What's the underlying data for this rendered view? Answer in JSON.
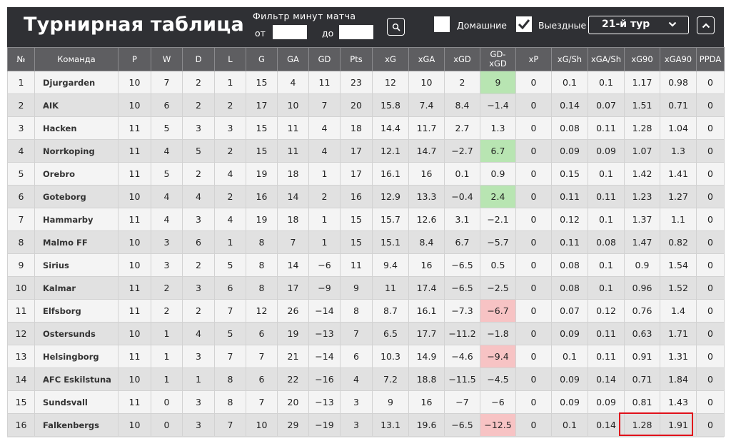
{
  "header": {
    "title": "Турнирная таблица",
    "filter_label": "Фильтр минут матча",
    "from_label": "от",
    "to_label": "до",
    "from_value": "",
    "to_value": "",
    "home_label": "Домашние",
    "home_checked": false,
    "away_label": "Выездные",
    "away_checked": true,
    "tour_selected": "21-й тур"
  },
  "columns": [
    "№",
    "Команда",
    "P",
    "W",
    "D",
    "L",
    "G",
    "GA",
    "GD",
    "Pts",
    "xG",
    "xGA",
    "xGD",
    "GD-\nxGD",
    "xP",
    "xG/Sh",
    "xGA/Sh",
    "xG90",
    "xGA90",
    "PPDA"
  ],
  "rows": [
    [
      "1",
      "Djurgarden",
      "10",
      "7",
      "2",
      "1",
      "15",
      "4",
      "11",
      "23",
      "12",
      "10",
      "2",
      "9",
      "0",
      "0.1",
      "0.1",
      "1.17",
      "0.98",
      "0"
    ],
    [
      "2",
      "AIK",
      "10",
      "6",
      "2",
      "2",
      "17",
      "10",
      "7",
      "20",
      "15.8",
      "7.4",
      "8.4",
      "-1.4",
      "0",
      "0.14",
      "0.07",
      "1.51",
      "0.71",
      "0"
    ],
    [
      "3",
      "Hacken",
      "11",
      "5",
      "3",
      "3",
      "15",
      "11",
      "4",
      "18",
      "14.4",
      "11.7",
      "2.7",
      "1.3",
      "0",
      "0.08",
      "0.11",
      "1.28",
      "1.04",
      "0"
    ],
    [
      "4",
      "Norrkoping",
      "11",
      "4",
      "5",
      "2",
      "15",
      "11",
      "4",
      "17",
      "12.1",
      "14.7",
      "-2.7",
      "6.7",
      "0",
      "0.09",
      "0.09",
      "1.07",
      "1.3",
      "0"
    ],
    [
      "5",
      "Orebro",
      "11",
      "5",
      "2",
      "4",
      "19",
      "18",
      "1",
      "17",
      "16.1",
      "16",
      "0.1",
      "0.9",
      "0",
      "0.15",
      "0.1",
      "1.42",
      "1.41",
      "0"
    ],
    [
      "6",
      "Goteborg",
      "10",
      "4",
      "4",
      "2",
      "16",
      "14",
      "2",
      "16",
      "12.9",
      "13.3",
      "-0.4",
      "2.4",
      "0",
      "0.11",
      "0.11",
      "1.23",
      "1.27",
      "0"
    ],
    [
      "7",
      "Hammarby",
      "11",
      "4",
      "3",
      "4",
      "19",
      "18",
      "1",
      "15",
      "15.7",
      "12.6",
      "3.1",
      "-2.1",
      "0",
      "0.12",
      "0.1",
      "1.37",
      "1.1",
      "0"
    ],
    [
      "8",
      "Malmo FF",
      "10",
      "3",
      "6",
      "1",
      "8",
      "7",
      "1",
      "15",
      "15.1",
      "8.4",
      "6.7",
      "-5.7",
      "0",
      "0.11",
      "0.08",
      "1.47",
      "0.82",
      "0"
    ],
    [
      "9",
      "Sirius",
      "10",
      "3",
      "2",
      "5",
      "8",
      "14",
      "-6",
      "11",
      "9.4",
      "16",
      "-6.5",
      "0.5",
      "0",
      "0.08",
      "0.1",
      "0.9",
      "1.54",
      "0"
    ],
    [
      "10",
      "Kalmar",
      "11",
      "2",
      "3",
      "6",
      "8",
      "17",
      "-9",
      "9",
      "11",
      "17.4",
      "-6.5",
      "-2.5",
      "0",
      "0.08",
      "0.1",
      "0.96",
      "1.52",
      "0"
    ],
    [
      "11",
      "Elfsborg",
      "11",
      "2",
      "2",
      "7",
      "12",
      "26",
      "-14",
      "8",
      "8.7",
      "16.1",
      "-7.3",
      "-6.7",
      "0",
      "0.07",
      "0.12",
      "0.76",
      "1.4",
      "0"
    ],
    [
      "12",
      "Ostersunds",
      "10",
      "1",
      "4",
      "5",
      "6",
      "19",
      "-13",
      "7",
      "6.5",
      "17.7",
      "-11.2",
      "-1.8",
      "0",
      "0.09",
      "0.11",
      "0.63",
      "1.71",
      "0"
    ],
    [
      "13",
      "Helsingborg",
      "11",
      "1",
      "3",
      "7",
      "7",
      "21",
      "-14",
      "6",
      "10.3",
      "14.9",
      "-4.6",
      "-9.4",
      "0",
      "0.1",
      "0.11",
      "0.91",
      "1.31",
      "0"
    ],
    [
      "14",
      "AFC Eskilstuna",
      "10",
      "1",
      "1",
      "8",
      "6",
      "22",
      "-16",
      "4",
      "7.2",
      "18.8",
      "-11.5",
      "-4.5",
      "0",
      "0.09",
      "0.14",
      "0.71",
      "1.84",
      "0"
    ],
    [
      "15",
      "Sundsvall",
      "11",
      "0",
      "3",
      "8",
      "7",
      "20",
      "-13",
      "3",
      "9",
      "16",
      "-7",
      "-6",
      "0",
      "0.09",
      "0.09",
      "0.81",
      "1.43",
      "0"
    ],
    [
      "16",
      "Falkenbergs",
      "10",
      "0",
      "3",
      "7",
      "10",
      "29",
      "-19",
      "3",
      "13.1",
      "19.6",
      "-6.5",
      "-12.5",
      "0",
      "0.1",
      "0.14",
      "1.28",
      "1.91",
      "0"
    ]
  ],
  "highlight_gd_xgd": {
    "good": [
      "1",
      "4",
      "6"
    ],
    "bad": [
      "11",
      "13",
      "16"
    ]
  },
  "colors": {
    "header_bg": "#2f3034",
    "column_header_bg": "#5e5e61",
    "good_cell": "#b8e5b2",
    "bad_cell": "#f7c3c4",
    "annotation_box": "#e0101a"
  },
  "annotation": {
    "row": "16",
    "columns": [
      "xG90",
      "xGA90"
    ]
  }
}
